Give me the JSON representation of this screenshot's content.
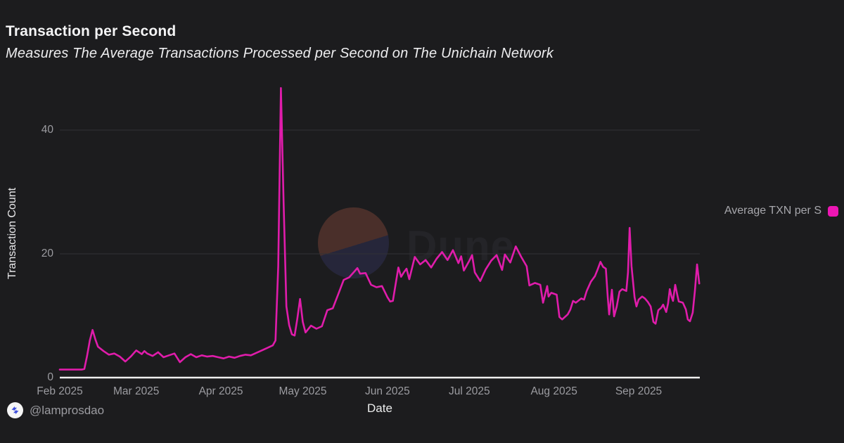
{
  "page": {
    "background": "#1c1c1e"
  },
  "header": {
    "title": "Transaction per Second",
    "subtitle": "Measures The Average Transactions Processed per Second on The Unichain Network"
  },
  "legend": {
    "label": "Average TXN per S",
    "swatch_color": "#ed16b4"
  },
  "watermark": {
    "text": "Dune",
    "circle_top_color": "#4a2f2a",
    "circle_bottom_color": "#26263a"
  },
  "footer": {
    "handle": "@lamprosdao",
    "logo_icon": "lamprosdao-logo-icon",
    "logo_color": "#3b4bdb"
  },
  "chart_data": {
    "type": "line",
    "title": "Transaction per Second",
    "xlabel": "Date",
    "ylabel": "Transaction Count",
    "x_tick_labels": [
      "Feb 2025",
      "Mar 2025",
      "Apr 2025",
      "May 2025",
      "Jun 2025",
      "Jul 2025",
      "Aug 2025",
      "Sep 2025"
    ],
    "x_tick_days": [
      0,
      28,
      59,
      89,
      120,
      150,
      181,
      212
    ],
    "x_day0": "Feb 1 2025",
    "y_ticks": [
      0,
      20,
      40
    ],
    "ylim": [
      0,
      47.5
    ],
    "grid": "horizontal",
    "legend_position": "right",
    "line_color": "#e01cab",
    "axis_color": "#f0f0f0",
    "grid_color": "#323236",
    "tick_text_color": "#9c9ca1",
    "series": [
      {
        "name": "Average TXN per S",
        "color": "#e01cab",
        "points_day_value": [
          [
            0,
            1.3
          ],
          [
            2,
            1.3
          ],
          [
            4,
            1.3
          ],
          [
            6,
            1.3
          ],
          [
            8,
            1.3
          ],
          [
            9,
            1.4
          ],
          [
            10,
            3.5
          ],
          [
            11,
            6.0
          ],
          [
            12,
            7.7
          ],
          [
            13,
            6.2
          ],
          [
            14,
            5.0
          ],
          [
            16,
            4.3
          ],
          [
            18,
            3.7
          ],
          [
            20,
            3.9
          ],
          [
            22,
            3.4
          ],
          [
            24,
            2.6
          ],
          [
            26,
            3.4
          ],
          [
            28,
            4.4
          ],
          [
            30,
            3.8
          ],
          [
            31,
            4.3
          ],
          [
            32,
            3.9
          ],
          [
            34,
            3.5
          ],
          [
            36,
            4.1
          ],
          [
            38,
            3.3
          ],
          [
            40,
            3.6
          ],
          [
            42,
            3.9
          ],
          [
            44,
            2.5
          ],
          [
            46,
            3.3
          ],
          [
            48,
            3.8
          ],
          [
            50,
            3.3
          ],
          [
            52,
            3.6
          ],
          [
            54,
            3.4
          ],
          [
            56,
            3.5
          ],
          [
            58,
            3.3
          ],
          [
            60,
            3.1
          ],
          [
            62,
            3.4
          ],
          [
            64,
            3.2
          ],
          [
            66,
            3.5
          ],
          [
            68,
            3.7
          ],
          [
            70,
            3.6
          ],
          [
            72,
            4.0
          ],
          [
            74,
            4.4
          ],
          [
            76,
            4.8
          ],
          [
            78,
            5.2
          ],
          [
            79,
            6.0
          ],
          [
            80,
            18.0
          ],
          [
            81,
            46.8
          ],
          [
            82,
            28.0
          ],
          [
            83,
            11.5
          ],
          [
            84,
            8.5
          ],
          [
            85,
            7.0
          ],
          [
            86,
            6.8
          ],
          [
            87,
            9.5
          ],
          [
            88,
            12.7
          ],
          [
            89,
            9.0
          ],
          [
            90,
            7.3
          ],
          [
            92,
            8.4
          ],
          [
            94,
            7.9
          ],
          [
            96,
            8.3
          ],
          [
            98,
            10.9
          ],
          [
            100,
            11.2
          ],
          [
            102,
            13.5
          ],
          [
            104,
            15.8
          ],
          [
            106,
            16.2
          ],
          [
            108,
            17.2
          ],
          [
            109,
            17.7
          ],
          [
            110,
            16.8
          ],
          [
            112,
            16.9
          ],
          [
            114,
            15.0
          ],
          [
            116,
            14.6
          ],
          [
            118,
            14.8
          ],
          [
            120,
            13.0
          ],
          [
            121,
            12.3
          ],
          [
            122,
            12.4
          ],
          [
            124,
            17.8
          ],
          [
            125,
            16.3
          ],
          [
            126,
            17.0
          ],
          [
            127,
            17.6
          ],
          [
            128,
            15.9
          ],
          [
            130,
            19.5
          ],
          [
            132,
            18.3
          ],
          [
            134,
            19.0
          ],
          [
            136,
            17.8
          ],
          [
            138,
            19.2
          ],
          [
            140,
            20.3
          ],
          [
            142,
            19.0
          ],
          [
            144,
            20.6
          ],
          [
            146,
            18.5
          ],
          [
            147,
            19.6
          ],
          [
            148,
            17.3
          ],
          [
            150,
            18.9
          ],
          [
            151,
            19.8
          ],
          [
            152,
            17.0
          ],
          [
            154,
            15.6
          ],
          [
            156,
            17.5
          ],
          [
            158,
            18.9
          ],
          [
            160,
            19.8
          ],
          [
            162,
            17.4
          ],
          [
            163,
            19.9
          ],
          [
            165,
            18.6
          ],
          [
            167,
            21.2
          ],
          [
            169,
            19.5
          ],
          [
            171,
            18.0
          ],
          [
            172,
            14.9
          ],
          [
            174,
            15.3
          ],
          [
            176,
            15.0
          ],
          [
            177,
            12.1
          ],
          [
            179,
            13.1
          ],
          [
            178.5,
            14.8
          ],
          [
            180,
            13.7
          ],
          [
            182,
            13.4
          ],
          [
            183,
            9.8
          ],
          [
            184,
            9.4
          ],
          [
            186,
            10.2
          ],
          [
            187,
            11.0
          ],
          [
            188,
            12.4
          ],
          [
            189,
            12.1
          ],
          [
            191,
            12.8
          ],
          [
            192,
            12.6
          ],
          [
            193,
            14.0
          ],
          [
            194.5,
            15.5
          ],
          [
            196,
            16.4
          ],
          [
            197,
            17.5
          ],
          [
            198,
            18.7
          ],
          [
            199,
            17.9
          ],
          [
            200,
            17.6
          ],
          [
            200.7,
            13.0
          ],
          [
            201.2,
            10.2
          ],
          [
            202.2,
            14.2
          ],
          [
            203,
            9.9
          ],
          [
            204,
            11.5
          ],
          [
            205,
            13.9
          ],
          [
            206,
            14.3
          ],
          [
            207.5,
            14.0
          ],
          [
            208.1,
            17.0
          ],
          [
            208.7,
            24.2
          ],
          [
            209.4,
            18.0
          ],
          [
            210.5,
            13.0
          ],
          [
            211.2,
            11.5
          ],
          [
            212,
            12.6
          ],
          [
            213.3,
            13.1
          ],
          [
            214.3,
            12.8
          ],
          [
            215.4,
            12.2
          ],
          [
            216.4,
            11.5
          ],
          [
            217.4,
            9.0
          ],
          [
            218.2,
            8.7
          ],
          [
            219.2,
            10.9
          ],
          [
            220.3,
            11.3
          ],
          [
            221,
            11.8
          ],
          [
            222.1,
            10.6
          ],
          [
            222.8,
            12.0
          ],
          [
            223.4,
            14.3
          ],
          [
            224.1,
            13.0
          ],
          [
            224.6,
            12.4
          ],
          [
            225.4,
            15.0
          ],
          [
            226.2,
            13.3
          ],
          [
            226.7,
            12.3
          ],
          [
            227.5,
            12.2
          ],
          [
            228.2,
            12.1
          ],
          [
            229.3,
            11.0
          ],
          [
            230,
            9.4
          ],
          [
            230.8,
            9.1
          ],
          [
            231.8,
            10.5
          ],
          [
            232.6,
            14.0
          ],
          [
            233.4,
            18.3
          ],
          [
            234.2,
            15.2
          ]
        ]
      }
    ]
  }
}
